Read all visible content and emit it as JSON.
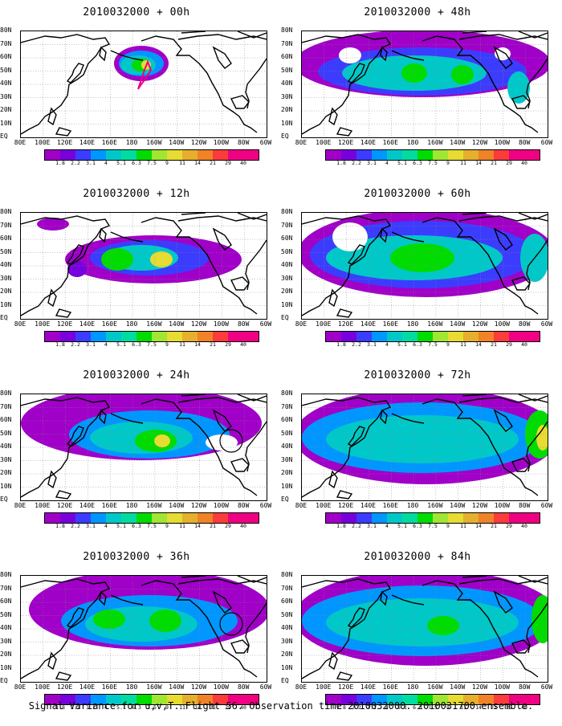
{
  "footer": "Signal Variance for u,v,T. Flight 56. Observation time 2010032000. 2010031700 ensemble.",
  "lat_labels": [
    "80N",
    "70N",
    "60N",
    "50N",
    "40N",
    "30N",
    "20N",
    "10N",
    "EQ"
  ],
  "lon_labels": [
    "80E",
    "100E",
    "120E",
    "140E",
    "160E",
    "180",
    "160W",
    "140W",
    "120W",
    "100W",
    "80W",
    "60W"
  ],
  "colorbar": {
    "labels": [
      "1.8",
      "2.2",
      "3.1",
      "4",
      "5.1",
      "6.3",
      "7.5",
      "9",
      "11",
      "14",
      "21",
      "29",
      "40"
    ],
    "colors": [
      "#a000c8",
      "#7800dc",
      "#3c3cff",
      "#0096ff",
      "#00c8c8",
      "#00dca0",
      "#00dc00",
      "#a0e632",
      "#e6dc32",
      "#e6af2d",
      "#f08228",
      "#fa3c3c",
      "#f00082"
    ]
  },
  "panels": [
    {
      "id": "00h",
      "title": "2010032000 + 00h",
      "column": "left",
      "row": 0
    },
    {
      "id": "12h",
      "title": "2010032000 + 12h",
      "column": "left",
      "row": 1
    },
    {
      "id": "24h",
      "title": "2010032000 + 24h",
      "column": "left",
      "row": 2
    },
    {
      "id": "36h",
      "title": "2010032000 + 36h",
      "column": "left",
      "row": 3
    },
    {
      "id": "48h",
      "title": "2010032000 + 48h",
      "column": "right",
      "row": 0
    },
    {
      "id": "60h",
      "title": "2010032000 + 60h",
      "column": "right",
      "row": 1
    },
    {
      "id": "72h",
      "title": "2010032000 + 72h",
      "column": "right",
      "row": 2
    },
    {
      "id": "84h",
      "title": "2010032000 + 84h",
      "column": "right",
      "row": 3
    }
  ]
}
